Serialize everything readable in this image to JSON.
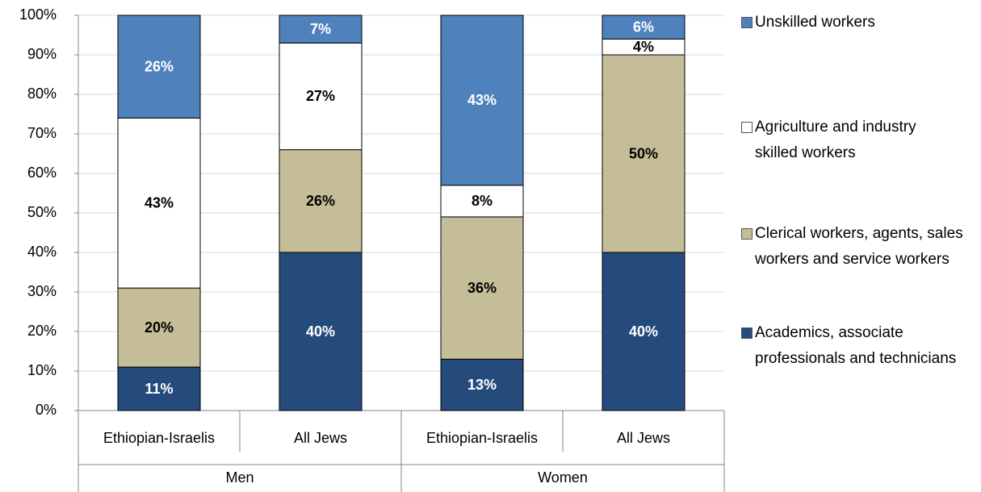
{
  "chart_data": {
    "type": "stacked_bar",
    "categories": [
      "Ethiopian-Israelis",
      "All Jews",
      "Ethiopian-Israelis",
      "All Jews"
    ],
    "groups": [
      "Men",
      "Women"
    ],
    "ylim": [
      0,
      100
    ],
    "yticks": [
      {
        "value": 0,
        "label": "0%"
      },
      {
        "value": 10,
        "label": "10%"
      },
      {
        "value": 20,
        "label": "20%"
      },
      {
        "value": 30,
        "label": "30%"
      },
      {
        "value": 40,
        "label": "40%"
      },
      {
        "value": 50,
        "label": "50%"
      },
      {
        "value": 60,
        "label": "60%"
      },
      {
        "value": 70,
        "label": "70%"
      },
      {
        "value": 80,
        "label": "80%"
      },
      {
        "value": 90,
        "label": "90%"
      },
      {
        "value": 100,
        "label": "100%"
      }
    ],
    "grid": true,
    "legend": "right",
    "series": [
      {
        "name": "Academics, associate professionals and technicians",
        "color": "#254a7c",
        "label_color": "#ffffff",
        "values": [
          11,
          40,
          13,
          40
        ],
        "value_labels": [
          "11%",
          "40%",
          "13%",
          "40%"
        ]
      },
      {
        "name": "Clerical workers, agents, sales workers and service workers",
        "color": "#c4bd97",
        "label_color": "#000000",
        "values": [
          20,
          26,
          36,
          50
        ],
        "value_labels": [
          "20%",
          "26%",
          "36%",
          "50%"
        ]
      },
      {
        "name": "Agriculture and industry skilled workers",
        "color": "#ffffff",
        "label_color": "#000000",
        "values": [
          43,
          27,
          8,
          4
        ],
        "value_labels": [
          "43%",
          "27%",
          "8%",
          "4%"
        ]
      },
      {
        "name": "Unskilled workers",
        "color": "#4f81bd",
        "label_color": "#ffffff",
        "values": [
          26,
          7,
          43,
          6
        ],
        "value_labels": [
          "26%",
          "7%",
          "43%",
          "6%"
        ]
      }
    ]
  }
}
